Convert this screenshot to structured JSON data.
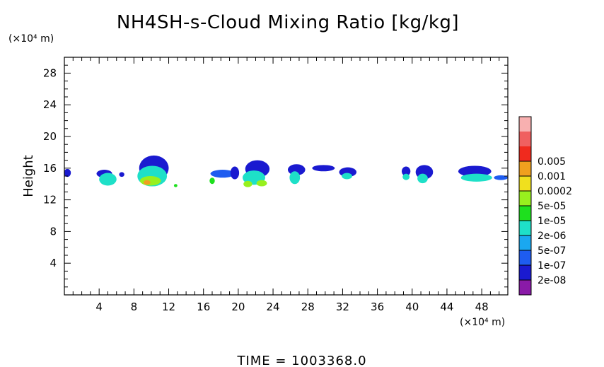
{
  "chart_data": {
    "type": "heatmap",
    "title": "NH4SH-s-Cloud Mixing Ratio [kg/kg]",
    "ylabel": "Height",
    "y_unit": "(×10⁴ m)",
    "x_unit": "(×10⁴ m)",
    "xlim": [
      0,
      51
    ],
    "ylim": [
      0,
      30
    ],
    "x_ticks": [
      "4",
      "8",
      "12",
      "16",
      "20",
      "24",
      "28",
      "32",
      "36",
      "40",
      "44",
      "48"
    ],
    "y_ticks": [
      "4",
      "8",
      "12",
      "16",
      "20",
      "24",
      "28"
    ],
    "grid": false,
    "colorbar": {
      "placement": "right",
      "levels": [
        "2e-08",
        "1e-07",
        "5e-07",
        "2e-06",
        "1e-05",
        "5e-05",
        "0.0002",
        "0.001",
        "0.005"
      ],
      "colors": [
        "#8a1aa8",
        "#1a1ad0",
        "#1e5cf0",
        "#1aa8f0",
        "#1ee0c8",
        "#1ee01e",
        "#98f01e",
        "#f0e01e",
        "#f0a01e",
        "#f02a1e",
        "#f06060",
        "#f8b0b0"
      ]
    },
    "cells": [
      {
        "x": 0.35,
        "y": 15.4,
        "rx": 0.4,
        "ry": 0.5,
        "level": 1
      },
      {
        "x": 4.6,
        "y": 15.3,
        "rx": 0.9,
        "ry": 0.5,
        "level": 1
      },
      {
        "x": 5.0,
        "y": 14.6,
        "rx": 1.0,
        "ry": 0.8,
        "level": 4
      },
      {
        "x": 6.6,
        "y": 15.2,
        "rx": 0.3,
        "ry": 0.3,
        "level": 1
      },
      {
        "x": 10.3,
        "y": 16.0,
        "rx": 1.7,
        "ry": 1.6,
        "level": 1
      },
      {
        "x": 10.1,
        "y": 15.0,
        "rx": 1.7,
        "ry": 1.3,
        "level": 4
      },
      {
        "x": 9.9,
        "y": 14.4,
        "rx": 1.2,
        "ry": 0.6,
        "level": 6
      },
      {
        "x": 9.5,
        "y": 14.2,
        "rx": 0.4,
        "ry": 0.3,
        "level": 8
      },
      {
        "x": 12.8,
        "y": 13.8,
        "rx": 0.2,
        "ry": 0.2,
        "level": 5
      },
      {
        "x": 18.2,
        "y": 15.3,
        "rx": 1.4,
        "ry": 0.5,
        "level": 2
      },
      {
        "x": 17.0,
        "y": 14.4,
        "rx": 0.3,
        "ry": 0.4,
        "level": 5
      },
      {
        "x": 19.6,
        "y": 15.4,
        "rx": 0.5,
        "ry": 0.8,
        "level": 1
      },
      {
        "x": 22.2,
        "y": 15.9,
        "rx": 1.4,
        "ry": 1.1,
        "level": 1
      },
      {
        "x": 21.8,
        "y": 14.8,
        "rx": 1.3,
        "ry": 0.9,
        "level": 4
      },
      {
        "x": 22.7,
        "y": 14.1,
        "rx": 0.6,
        "ry": 0.4,
        "level": 6
      },
      {
        "x": 21.1,
        "y": 14.0,
        "rx": 0.5,
        "ry": 0.4,
        "level": 6
      },
      {
        "x": 26.7,
        "y": 15.8,
        "rx": 1.0,
        "ry": 0.7,
        "level": 1
      },
      {
        "x": 26.5,
        "y": 14.8,
        "rx": 0.6,
        "ry": 0.8,
        "level": 4
      },
      {
        "x": 29.8,
        "y": 16.0,
        "rx": 1.3,
        "ry": 0.4,
        "level": 1
      },
      {
        "x": 32.6,
        "y": 15.5,
        "rx": 1.0,
        "ry": 0.6,
        "level": 1
      },
      {
        "x": 32.5,
        "y": 15.0,
        "rx": 0.6,
        "ry": 0.4,
        "level": 4
      },
      {
        "x": 39.3,
        "y": 15.6,
        "rx": 0.5,
        "ry": 0.6,
        "level": 1
      },
      {
        "x": 39.3,
        "y": 14.9,
        "rx": 0.4,
        "ry": 0.4,
        "level": 4
      },
      {
        "x": 41.4,
        "y": 15.5,
        "rx": 1.0,
        "ry": 0.9,
        "level": 1
      },
      {
        "x": 41.2,
        "y": 14.7,
        "rx": 0.6,
        "ry": 0.6,
        "level": 4
      },
      {
        "x": 47.2,
        "y": 15.6,
        "rx": 1.9,
        "ry": 0.7,
        "level": 1
      },
      {
        "x": 47.4,
        "y": 14.8,
        "rx": 1.8,
        "ry": 0.5,
        "level": 4
      },
      {
        "x": 50.2,
        "y": 14.8,
        "rx": 0.8,
        "ry": 0.3,
        "level": 2
      }
    ],
    "annotation": "TIME = 1003368.0"
  }
}
